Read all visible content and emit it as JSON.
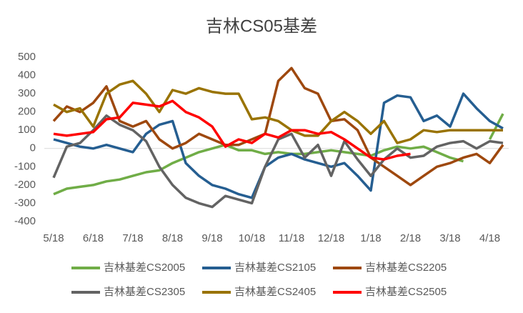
{
  "chart_data": {
    "type": "line",
    "title": "吉林CS05基差",
    "categories": [
      "5/18",
      null,
      null,
      "6/18",
      null,
      null,
      "7/18",
      null,
      null,
      "8/18",
      null,
      null,
      "9/18",
      null,
      null,
      "10/18",
      null,
      null,
      "11/18",
      null,
      null,
      "12/18",
      null,
      null,
      "1/18",
      null,
      null,
      "2/18",
      null,
      null,
      "3/18",
      null,
      null,
      "4/18",
      null
    ],
    "series": [
      {
        "name": "吉林基差CS2005",
        "color": "#70ad47",
        "values": [
          -250,
          -220,
          -210,
          -200,
          -180,
          -170,
          -150,
          -130,
          -120,
          -80,
          -50,
          -20,
          0,
          20,
          -10,
          -10,
          -30,
          -20,
          -30,
          -30,
          -20,
          -10,
          -20,
          -30,
          -40,
          -10,
          10,
          0,
          10,
          -20,
          -50,
          -70,
          null,
          50,
          190
        ]
      },
      {
        "name": "吉林基差CS2105",
        "color": "#255e91",
        "values": [
          50,
          30,
          10,
          0,
          20,
          0,
          -20,
          80,
          130,
          150,
          -80,
          -150,
          -200,
          -220,
          -250,
          -270,
          -100,
          -50,
          -30,
          -60,
          -80,
          -100,
          -80,
          -150,
          -230,
          250,
          290,
          280,
          150,
          180,
          120,
          300,
          220,
          150,
          110
        ]
      },
      {
        "name": "吉林基差CS2205",
        "color": "#9e480e",
        "values": [
          150,
          230,
          200,
          250,
          340,
          150,
          120,
          150,
          50,
          0,
          30,
          80,
          50,
          20,
          20,
          50,
          80,
          370,
          440,
          330,
          300,
          150,
          160,
          100,
          -50,
          -100,
          -150,
          -200,
          -150,
          -100,
          -80,
          -50,
          -30,
          -80,
          20
        ]
      },
      {
        "name": "吉林基差CS2305",
        "color": "#636363",
        "values": [
          -160,
          10,
          30,
          100,
          180,
          130,
          100,
          40,
          -100,
          -200,
          -270,
          -300,
          -320,
          -260,
          -280,
          -300,
          -100,
          50,
          80,
          -50,
          20,
          -150,
          40,
          -60,
          -150,
          -60,
          0,
          -50,
          -40,
          10,
          30,
          40,
          0,
          40,
          30
        ]
      },
      {
        "name": "吉林基差CS2405",
        "color": "#997300",
        "values": [
          240,
          200,
          220,
          120,
          300,
          350,
          370,
          300,
          200,
          320,
          300,
          330,
          310,
          300,
          300,
          160,
          170,
          150,
          100,
          70,
          70,
          150,
          200,
          150,
          80,
          150,
          30,
          50,
          100,
          90,
          100,
          100,
          100,
          100,
          100
        ]
      },
      {
        "name": "吉林基差CS2505",
        "color": "#ff0000",
        "values": [
          80,
          70,
          80,
          90,
          160,
          170,
          250,
          240,
          230,
          260,
          200,
          170,
          120,
          10,
          50,
          30,
          80,
          60,
          100,
          100,
          80,
          90,
          50,
          0,
          -50,
          -60,
          -40,
          -30,
          null,
          null,
          null,
          null,
          null,
          null,
          null
        ]
      }
    ],
    "ylim": [
      -400,
      500
    ],
    "yticks": [
      -400,
      -300,
      -200,
      -100,
      0,
      100,
      200,
      300,
      400,
      500
    ]
  }
}
